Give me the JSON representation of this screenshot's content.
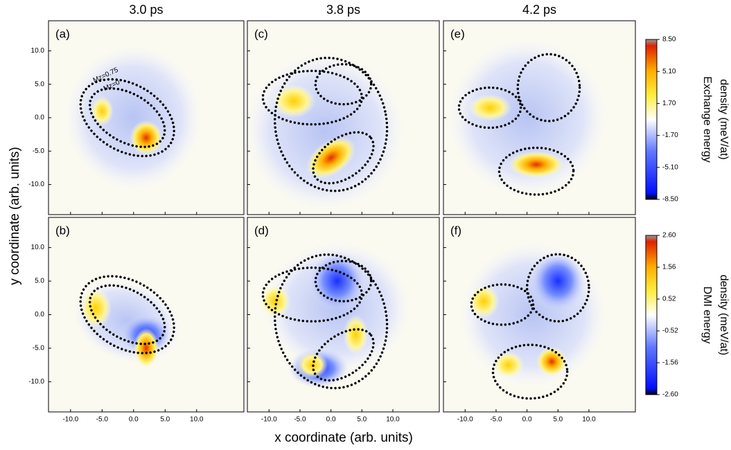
{
  "figure": {
    "column_titles": [
      "3.0 ps",
      "3.8 ps",
      "4.2 ps"
    ],
    "x_label": "x coordinate (arb. units)",
    "y_label": "y coordinate (arb. units)",
    "xlim": [
      -13.5,
      17.5
    ],
    "ylim": [
      -14.5,
      14.5
    ],
    "xticks": [
      {
        "value": -10,
        "label": "-10.0"
      },
      {
        "value": -5,
        "label": "-5.0"
      },
      {
        "value": 0,
        "label": "0.0"
      },
      {
        "value": 5,
        "label": "5.0"
      },
      {
        "value": 10,
        "label": "10.0"
      }
    ],
    "yticks": [
      {
        "value": 10,
        "label": "10.0"
      },
      {
        "value": 5,
        "label": "5.0"
      },
      {
        "value": 0,
        "label": "0.0"
      },
      {
        "value": -5,
        "label": "-5.0"
      },
      {
        "value": -10,
        "label": "-10.0"
      }
    ],
    "panels": [
      "(a)",
      "(c)",
      "(e)",
      "(b)",
      "(d)",
      "(f)"
    ],
    "annotations": [
      "Mz=0.75",
      "Mz=0"
    ],
    "colorbars": [
      {
        "title_lines": [
          "Exchange energy",
          "density (meV/at)"
        ],
        "lim": [
          -8.5,
          8.5
        ],
        "ticks": [
          {
            "value": 8.5,
            "label": "8.50"
          },
          {
            "value": 5.1,
            "label": "5.10"
          },
          {
            "value": 1.7,
            "label": "1.70"
          },
          {
            "value": -1.7,
            "label": "-1.70"
          },
          {
            "value": -5.1,
            "label": "-5.10"
          },
          {
            "value": -8.5,
            "label": "-8.50"
          }
        ]
      },
      {
        "title_lines": [
          "DMI energy",
          "density (meV/at)"
        ],
        "lim": [
          -2.6,
          2.6
        ],
        "ticks": [
          {
            "value": 2.6,
            "label": "2.60"
          },
          {
            "value": 1.56,
            "label": "1.56"
          },
          {
            "value": 0.52,
            "label": "0.52"
          },
          {
            "value": -0.52,
            "label": "-0.52"
          },
          {
            "value": -1.56,
            "label": "-1.56"
          },
          {
            "value": -2.6,
            "label": "-2.60"
          }
        ]
      }
    ]
  }
}
